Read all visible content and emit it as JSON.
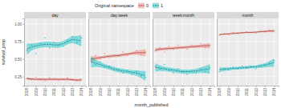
{
  "chart_data": {
    "type": "scatter",
    "x_label": "month_published",
    "y_label": "survival_prop",
    "legend_title": "Original namespace",
    "legend": "top",
    "grid": true,
    "x": [
      2008.0,
      2008.5,
      2009.0,
      2009.5,
      2010.0,
      2010.5,
      2011.0,
      2011.5,
      2012.0,
      2012.5,
      2013.0,
      2013.5,
      2014.0
    ],
    "xlim": [
      2007.7,
      2014.5
    ],
    "xticks": [
      2008,
      2009,
      2010,
      2011,
      2012,
      2013,
      2014
    ],
    "ylim": [
      0.12,
      1.08
    ],
    "yticks": [
      0.25,
      {
        "value": 0.5,
        "label": "0.50"
      },
      0.75,
      {
        "value": 1.0,
        "label": "1.00"
      }
    ],
    "panels": [
      {
        "title": "day",
        "series": [
          {
            "name": "0",
            "color": "#F8766D",
            "line_style": "solid",
            "values": [
              0.22,
              0.2,
              0.24,
              0.21,
              0.19,
              0.23,
              0.22,
              0.2,
              0.21,
              0.23,
              0.2,
              0.19,
              0.21
            ],
            "smooth": [
              0.22,
              0.215,
              0.21,
              0.21,
              0.21,
              0.21,
              0.21,
              0.21,
              0.21,
              0.21,
              0.205,
              0.2,
              0.2
            ],
            "lower": [
              0.2,
              0.2,
              0.195,
              0.195,
              0.195,
              0.195,
              0.195,
              0.195,
              0.195,
              0.195,
              0.19,
              0.185,
              0.18
            ],
            "upper": [
              0.24,
              0.23,
              0.225,
              0.225,
              0.225,
              0.225,
              0.225,
              0.225,
              0.225,
              0.225,
              0.22,
              0.215,
              0.22
            ]
          },
          {
            "name": "1",
            "color": "#00BFC4",
            "line_style": "dashed",
            "values": [
              0.62,
              0.7,
              0.58,
              0.72,
              0.8,
              0.66,
              0.74,
              0.7,
              0.68,
              0.76,
              0.82,
              0.74,
              0.8
            ],
            "smooth": [
              0.64,
              0.67,
              0.69,
              0.7,
              0.71,
              0.71,
              0.7,
              0.7,
              0.72,
              0.75,
              0.78,
              0.77,
              0.76
            ],
            "lower": [
              0.56,
              0.62,
              0.65,
              0.66,
              0.67,
              0.67,
              0.66,
              0.66,
              0.68,
              0.71,
              0.73,
              0.71,
              0.68
            ],
            "upper": [
              0.72,
              0.72,
              0.73,
              0.74,
              0.75,
              0.75,
              0.74,
              0.74,
              0.76,
              0.79,
              0.83,
              0.83,
              0.84
            ]
          }
        ]
      },
      {
        "title": "day:week",
        "series": [
          {
            "name": "0",
            "color": "#F8766D",
            "line_style": "solid",
            "values": [
              0.48,
              0.55,
              0.5,
              0.58,
              0.52,
              0.56,
              0.54,
              0.6,
              0.55,
              0.58,
              0.62,
              0.56,
              0.6
            ],
            "smooth": [
              0.5,
              0.51,
              0.52,
              0.53,
              0.54,
              0.545,
              0.55,
              0.56,
              0.57,
              0.58,
              0.59,
              0.59,
              0.59
            ],
            "lower": [
              0.46,
              0.48,
              0.5,
              0.51,
              0.52,
              0.525,
              0.53,
              0.54,
              0.55,
              0.56,
              0.56,
              0.55,
              0.54
            ],
            "upper": [
              0.54,
              0.54,
              0.54,
              0.55,
              0.56,
              0.565,
              0.57,
              0.58,
              0.59,
              0.6,
              0.62,
              0.63,
              0.64
            ]
          },
          {
            "name": "1",
            "color": "#00BFC4",
            "line_style": "dashed",
            "values": [
              0.5,
              0.42,
              0.46,
              0.38,
              0.4,
              0.34,
              0.36,
              0.3,
              0.34,
              0.28,
              0.32,
              0.26,
              0.24
            ],
            "smooth": [
              0.46,
              0.44,
              0.42,
              0.4,
              0.38,
              0.36,
              0.34,
              0.33,
              0.32,
              0.31,
              0.3,
              0.28,
              0.26
            ],
            "lower": [
              0.38,
              0.39,
              0.38,
              0.37,
              0.35,
              0.33,
              0.31,
              0.3,
              0.29,
              0.28,
              0.26,
              0.23,
              0.19
            ],
            "upper": [
              0.54,
              0.49,
              0.46,
              0.43,
              0.41,
              0.39,
              0.37,
              0.36,
              0.35,
              0.34,
              0.34,
              0.33,
              0.33
            ]
          }
        ]
      },
      {
        "title": "week:month",
        "series": [
          {
            "name": "0",
            "color": "#F8766D",
            "line_style": "solid",
            "values": [
              0.62,
              0.66,
              0.6,
              0.68,
              0.64,
              0.7,
              0.66,
              0.64,
              0.7,
              0.68,
              0.72,
              0.66,
              0.7
            ],
            "smooth": [
              0.63,
              0.64,
              0.645,
              0.65,
              0.655,
              0.66,
              0.665,
              0.67,
              0.675,
              0.68,
              0.685,
              0.69,
              0.69
            ],
            "lower": [
              0.6,
              0.62,
              0.625,
              0.63,
              0.635,
              0.64,
              0.645,
              0.65,
              0.655,
              0.66,
              0.66,
              0.66,
              0.65
            ],
            "upper": [
              0.66,
              0.66,
              0.665,
              0.67,
              0.675,
              0.68,
              0.685,
              0.69,
              0.695,
              0.7,
              0.71,
              0.72,
              0.73
            ]
          },
          {
            "name": "1",
            "color": "#00BFC4",
            "line_style": "dashed",
            "values": [
              0.4,
              0.36,
              0.42,
              0.34,
              0.3,
              0.36,
              0.32,
              0.28,
              0.34,
              0.3,
              0.36,
              0.32,
              0.38
            ],
            "smooth": [
              0.38,
              0.37,
              0.36,
              0.35,
              0.34,
              0.33,
              0.32,
              0.32,
              0.32,
              0.33,
              0.34,
              0.35,
              0.36
            ],
            "lower": [
              0.32,
              0.33,
              0.33,
              0.32,
              0.31,
              0.3,
              0.29,
              0.29,
              0.29,
              0.3,
              0.3,
              0.3,
              0.29
            ],
            "upper": [
              0.44,
              0.41,
              0.39,
              0.38,
              0.37,
              0.36,
              0.35,
              0.35,
              0.35,
              0.36,
              0.38,
              0.4,
              0.43
            ]
          }
        ]
      },
      {
        "title": "month",
        "series": [
          {
            "name": "0",
            "color": "#F8766D",
            "line_style": "solid",
            "values": [
              0.84,
              0.86,
              0.85,
              0.88,
              0.86,
              0.87,
              0.89,
              0.88,
              0.87,
              0.9,
              0.89,
              0.91,
              0.9
            ],
            "smooth": [
              0.85,
              0.855,
              0.86,
              0.865,
              0.87,
              0.875,
              0.88,
              0.88,
              0.885,
              0.89,
              0.895,
              0.9,
              0.9
            ],
            "lower": [
              0.84,
              0.845,
              0.85,
              0.855,
              0.86,
              0.865,
              0.87,
              0.87,
              0.875,
              0.88,
              0.88,
              0.885,
              0.88
            ],
            "upper": [
              0.86,
              0.865,
              0.87,
              0.875,
              0.88,
              0.885,
              0.89,
              0.89,
              0.895,
              0.9,
              0.91,
              0.915,
              0.92
            ]
          },
          {
            "name": "1",
            "color": "#00BFC4",
            "line_style": "dashed",
            "values": [
              0.32,
              0.36,
              0.34,
              0.38,
              0.36,
              0.4,
              0.37,
              0.39,
              0.36,
              0.4,
              0.42,
              0.44,
              0.48
            ],
            "smooth": [
              0.35,
              0.355,
              0.36,
              0.365,
              0.37,
              0.375,
              0.38,
              0.385,
              0.39,
              0.4,
              0.41,
              0.43,
              0.45
            ],
            "lower": [
              0.32,
              0.33,
              0.34,
              0.345,
              0.35,
              0.355,
              0.36,
              0.365,
              0.37,
              0.375,
              0.38,
              0.39,
              0.39
            ],
            "upper": [
              0.38,
              0.38,
              0.38,
              0.385,
              0.39,
              0.395,
              0.4,
              0.405,
              0.41,
              0.425,
              0.44,
              0.47,
              0.51
            ]
          }
        ]
      }
    ]
  }
}
